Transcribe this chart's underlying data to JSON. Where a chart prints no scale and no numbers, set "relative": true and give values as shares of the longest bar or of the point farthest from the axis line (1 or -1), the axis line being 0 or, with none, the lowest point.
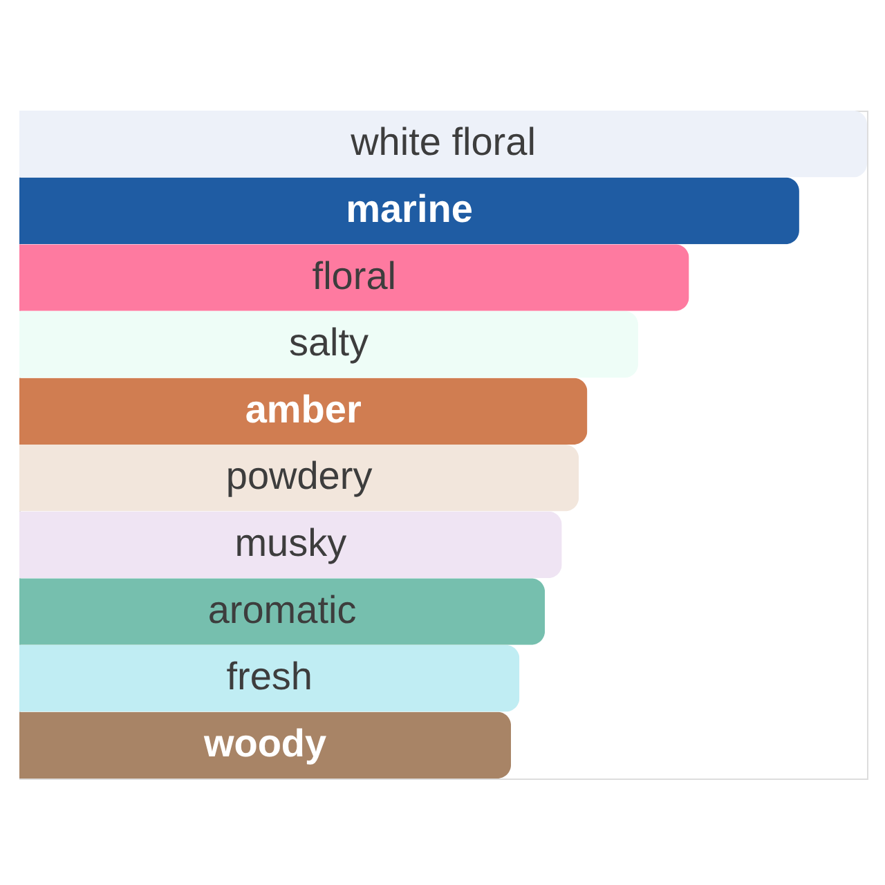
{
  "chart_data": {
    "type": "bar",
    "orientation": "horizontal",
    "relative": true,
    "categories": [
      "white floral",
      "marine",
      "floral",
      "salty",
      "amber",
      "powdery",
      "musky",
      "aromatic",
      "fresh",
      "woody"
    ],
    "values": [
      1,
      0.92,
      0.79,
      0.73,
      0.67,
      0.66,
      0.64,
      0.62,
      0.59,
      0.58
    ],
    "colors": [
      "#edf1f9",
      "#1f5ca3",
      "#fe7aa0",
      "#eefdf7",
      "#d07d51",
      "#f2e6dc",
      "#efe4f3",
      "#76bfae",
      "#c0edf3",
      "#a88466"
    ]
  }
}
